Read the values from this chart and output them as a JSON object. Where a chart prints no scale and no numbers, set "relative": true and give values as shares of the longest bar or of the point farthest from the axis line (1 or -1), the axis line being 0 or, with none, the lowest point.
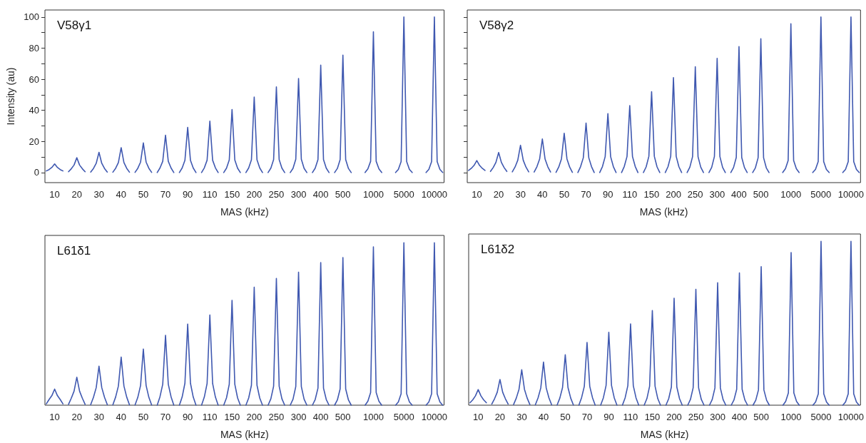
{
  "chart_data": [
    {
      "type": "line",
      "title": "V58γ1",
      "xlabel": "MAS (kHz)",
      "ylabel": "Intensity (au)",
      "color": "#3f58b0",
      "marker": "none",
      "line_style": "solid",
      "ylim": [
        -6.5,
        104.5
      ],
      "yticks": [
        0,
        {
          "value": 10,
          "label": null
        },
        20,
        {
          "value": 30,
          "label": null
        },
        40,
        {
          "value": 50,
          "label": null
        },
        60,
        {
          "value": 70,
          "label": null
        },
        80,
        {
          "value": 90,
          "label": null
        },
        100
      ],
      "categories": [
        null,
        null,
        null,
        "10",
        null,
        null,
        null,
        null,
        null,
        null,
        null,
        "20",
        null,
        null,
        null,
        null,
        null,
        null,
        null,
        "30",
        null,
        null,
        null,
        null,
        null,
        null,
        null,
        "40",
        null,
        null,
        null,
        null,
        null,
        null,
        null,
        "50",
        null,
        null,
        null,
        null,
        null,
        null,
        null,
        "70",
        null,
        null,
        null,
        null,
        null,
        null,
        null,
        "90",
        null,
        null,
        null,
        null,
        null,
        null,
        null,
        "110",
        null,
        null,
        null,
        null,
        null,
        null,
        null,
        "150",
        null,
        null,
        null,
        null,
        null,
        null,
        null,
        "200",
        null,
        null,
        null,
        null,
        null,
        null,
        null,
        "250",
        null,
        null,
        null,
        null,
        null,
        null,
        null,
        "300",
        null,
        null,
        null,
        null,
        null,
        null,
        null,
        "400",
        null,
        null,
        null,
        null,
        null,
        null,
        null,
        "500",
        null,
        null,
        null,
        null,
        null,
        null,
        null,
        null,
        null,
        null,
        "1000",
        null,
        null,
        null,
        null,
        null,
        null,
        null,
        null,
        null,
        null,
        "5000",
        null,
        null,
        null,
        null,
        null,
        null,
        null,
        null,
        null,
        null,
        "10000",
        null,
        null,
        null
      ],
      "values": [
        1,
        1.9,
        3.3,
        5.5,
        3.3,
        1.9,
        1,
        null,
        0.5,
        2.4,
        4.8,
        9.5,
        4.8,
        2.4,
        0.5,
        null,
        0.3,
        2.6,
        5.9,
        13,
        5.9,
        2.6,
        0.3,
        null,
        0.2,
        2.7,
        6.4,
        16,
        6.4,
        2.7,
        0.2,
        null,
        0.1,
        2.7,
        6.7,
        19,
        6.7,
        2.7,
        0.1,
        null,
        0,
        2.9,
        7.2,
        24,
        7.2,
        2.9,
        0,
        null,
        0,
        2.9,
        7.8,
        29,
        7.8,
        2.9,
        0,
        null,
        0,
        3,
        7.9,
        33,
        7.9,
        3,
        0,
        null,
        0,
        2.8,
        8.1,
        40.5,
        8.1,
        2.8,
        0,
        null,
        0,
        2.9,
        8.2,
        48.5,
        8.2,
        2.9,
        0,
        null,
        0,
        2.8,
        8.3,
        55,
        8.3,
        2.8,
        0,
        null,
        0,
        2.7,
        8.5,
        60.5,
        8.5,
        2.7,
        0,
        null,
        0,
        2.8,
        8.3,
        69,
        8.3,
        2.8,
        0,
        null,
        0,
        2.6,
        8.3,
        75.5,
        8.3,
        2.6,
        0,
        null,
        null,
        null,
        null,
        0,
        2.3,
        7.2,
        90.5,
        7.2,
        2.3,
        0,
        null,
        null,
        null,
        null,
        0,
        2,
        7,
        100,
        7,
        2,
        0,
        null,
        null,
        null,
        null,
        0,
        2,
        7,
        100,
        7,
        2,
        0
      ]
    },
    {
      "type": "line",
      "title": "V58γ2",
      "xlabel": "MAS (kHz)",
      "color": "#3f58b0",
      "marker": "none",
      "line_style": "solid",
      "tick_labels": "x",
      "ylim": [
        -6.5,
        104.5
      ],
      "yticks": [
        0,
        {
          "value": 10,
          "label": null
        },
        20,
        {
          "value": 30,
          "label": null
        },
        40,
        {
          "value": 50,
          "label": null
        },
        60,
        {
          "value": 70,
          "label": null
        },
        80,
        {
          "value": 90,
          "label": null
        },
        100
      ],
      "categories": [
        null,
        null,
        null,
        "10",
        null,
        null,
        null,
        null,
        null,
        null,
        null,
        "20",
        null,
        null,
        null,
        null,
        null,
        null,
        null,
        "30",
        null,
        null,
        null,
        null,
        null,
        null,
        null,
        "40",
        null,
        null,
        null,
        null,
        null,
        null,
        null,
        "50",
        null,
        null,
        null,
        null,
        null,
        null,
        null,
        "70",
        null,
        null,
        null,
        null,
        null,
        null,
        null,
        "90",
        null,
        null,
        null,
        null,
        null,
        null,
        null,
        "110",
        null,
        null,
        null,
        null,
        null,
        null,
        null,
        "150",
        null,
        null,
        null,
        null,
        null,
        null,
        null,
        "200",
        null,
        null,
        null,
        null,
        null,
        null,
        null,
        "250",
        null,
        null,
        null,
        null,
        null,
        null,
        null,
        "300",
        null,
        null,
        null,
        null,
        null,
        null,
        null,
        "400",
        null,
        null,
        null,
        null,
        null,
        null,
        null,
        "500",
        null,
        null,
        null,
        null,
        null,
        null,
        null,
        null,
        null,
        null,
        "1000",
        null,
        null,
        null,
        null,
        null,
        null,
        null,
        null,
        null,
        null,
        "5000",
        null,
        null,
        null,
        null,
        null,
        null,
        null,
        null,
        null,
        null,
        "10000",
        null,
        null,
        null
      ],
      "values": [
        1.3,
        2.7,
        4.6,
        7.7,
        4.6,
        2.7,
        1.3,
        null,
        0.7,
        3.2,
        6.5,
        12.9,
        6.5,
        3.2,
        0.7,
        null,
        0.4,
        3.5,
        7.9,
        17.5,
        7.9,
        3.5,
        0.4,
        null,
        0.3,
        3.7,
        8.6,
        21.6,
        8.6,
        3.7,
        0.3,
        null,
        0.1,
        3.5,
        8.8,
        25.2,
        8.8,
        3.5,
        0.1,
        null,
        0,
        3.8,
        9.5,
        31.8,
        9.5,
        3.8,
        0,
        null,
        0,
        3.8,
        10.2,
        37.9,
        10.2,
        3.8,
        0,
        null,
        0,
        3.9,
        10.3,
        43,
        10.3,
        3.9,
        0,
        null,
        0,
        3.6,
        10.4,
        52,
        10.4,
        3.6,
        0,
        null,
        0,
        3.7,
        10.4,
        61,
        10.4,
        3.7,
        0,
        null,
        0,
        3.4,
        10.2,
        68,
        10.2,
        3.4,
        0,
        null,
        0,
        3.3,
        10.3,
        73.4,
        10.3,
        3.3,
        0,
        null,
        0,
        3.2,
        9.7,
        81,
        9.7,
        3.2,
        0,
        null,
        0,
        3,
        9.5,
        86,
        9.5,
        3,
        0,
        null,
        null,
        null,
        null,
        0,
        2.4,
        7.7,
        95.7,
        7.7,
        2.4,
        0,
        null,
        null,
        null,
        null,
        0,
        2,
        7,
        100,
        7,
        2,
        0,
        null,
        null,
        null,
        null,
        0,
        2,
        7,
        100,
        7,
        2,
        0
      ]
    },
    {
      "type": "line",
      "title": "L61δ1",
      "xlabel": "MAS (kHz)",
      "color": "#3f58b0",
      "marker": "none",
      "line_style": "solid",
      "relative": true,
      "categories": [
        null,
        null,
        null,
        "10",
        null,
        null,
        null,
        null,
        null,
        null,
        null,
        "20",
        null,
        null,
        null,
        null,
        null,
        null,
        null,
        "30",
        null,
        null,
        null,
        null,
        null,
        null,
        null,
        "40",
        null,
        null,
        null,
        null,
        null,
        null,
        null,
        "50",
        null,
        null,
        null,
        null,
        null,
        null,
        null,
        "70",
        null,
        null,
        null,
        null,
        null,
        null,
        null,
        "90",
        null,
        null,
        null,
        null,
        null,
        null,
        null,
        "110",
        null,
        null,
        null,
        null,
        null,
        null,
        null,
        "150",
        null,
        null,
        null,
        null,
        null,
        null,
        null,
        "200",
        null,
        null,
        null,
        null,
        null,
        null,
        null,
        "250",
        null,
        null,
        null,
        null,
        null,
        null,
        null,
        "300",
        null,
        null,
        null,
        null,
        null,
        null,
        null,
        "400",
        null,
        null,
        null,
        null,
        null,
        null,
        null,
        "500",
        null,
        null,
        null,
        null,
        null,
        null,
        null,
        null,
        null,
        null,
        "1000",
        null,
        null,
        null,
        null,
        null,
        null,
        null,
        null,
        null,
        null,
        "5000",
        null,
        null,
        null,
        null,
        null,
        null,
        null,
        null,
        null,
        null,
        "10000",
        null,
        null,
        null
      ],
      "values": [
        0.008,
        0.035,
        0.059,
        0.099,
        0.059,
        0.035,
        0.008,
        null,
        0.005,
        0.043,
        0.086,
        0.172,
        0.086,
        0.043,
        0.005,
        null,
        0.003,
        0.048,
        0.108,
        0.24,
        0.108,
        0.048,
        0.003,
        null,
        0.002,
        0.05,
        0.118,
        0.296,
        0.118,
        0.05,
        0.002,
        null,
        0.001,
        0.048,
        0.121,
        0.346,
        0.121,
        0.048,
        0.001,
        null,
        0,
        0.052,
        0.129,
        0.43,
        0.129,
        0.052,
        0,
        null,
        0,
        0.05,
        0.135,
        0.499,
        0.135,
        0.05,
        0,
        null,
        0,
        0.05,
        0.133,
        0.555,
        0.133,
        0.05,
        0,
        null,
        0,
        0.045,
        0.129,
        0.645,
        0.129,
        0.045,
        0,
        null,
        0,
        0.044,
        0.123,
        0.726,
        0.123,
        0.044,
        0,
        null,
        0,
        0.039,
        0.117,
        0.78,
        0.117,
        0.039,
        0,
        null,
        0,
        0.037,
        0.115,
        0.819,
        0.115,
        0.037,
        0,
        null,
        0,
        0.035,
        0.105,
        0.878,
        0.105,
        0.035,
        0,
        null,
        0,
        0.032,
        0.1,
        0.909,
        0.1,
        0.032,
        0,
        null,
        null,
        null,
        null,
        0,
        0.024,
        0.078,
        0.974,
        0.078,
        0.024,
        0,
        null,
        null,
        null,
        null,
        0,
        0.02,
        0.07,
        1,
        0.07,
        0.02,
        0,
        null,
        null,
        null,
        null,
        0,
        0.02,
        0.07,
        1,
        0.07,
        0.02,
        0
      ]
    },
    {
      "type": "line",
      "title": "L61δ2",
      "xlabel": "MAS (kHz)",
      "color": "#3f58b0",
      "marker": "none",
      "line_style": "solid",
      "relative": true,
      "categories": [
        null,
        null,
        null,
        "10",
        null,
        null,
        null,
        null,
        null,
        null,
        null,
        "20",
        null,
        null,
        null,
        null,
        null,
        null,
        null,
        "30",
        null,
        null,
        null,
        null,
        null,
        null,
        null,
        "40",
        null,
        null,
        null,
        null,
        null,
        null,
        null,
        "50",
        null,
        null,
        null,
        null,
        null,
        null,
        null,
        "70",
        null,
        null,
        null,
        null,
        null,
        null,
        null,
        "90",
        null,
        null,
        null,
        null,
        null,
        null,
        null,
        "110",
        null,
        null,
        null,
        null,
        null,
        null,
        null,
        "150",
        null,
        null,
        null,
        null,
        null,
        null,
        null,
        "200",
        null,
        null,
        null,
        null,
        null,
        null,
        null,
        "250",
        null,
        null,
        null,
        null,
        null,
        null,
        null,
        "300",
        null,
        null,
        null,
        null,
        null,
        null,
        null,
        "400",
        null,
        null,
        null,
        null,
        null,
        null,
        null,
        "500",
        null,
        null,
        null,
        null,
        null,
        null,
        null,
        null,
        null,
        null,
        "1000",
        null,
        null,
        null,
        null,
        null,
        null,
        null,
        null,
        null,
        null,
        "5000",
        null,
        null,
        null,
        null,
        null,
        null,
        null,
        null,
        null,
        null,
        "10000",
        null,
        null,
        null
      ],
      "values": [
        0.015,
        0.033,
        0.057,
        0.095,
        0.057,
        0.033,
        0.015,
        null,
        0.007,
        0.039,
        0.079,
        0.157,
        0.079,
        0.039,
        0.007,
        null,
        0.004,
        0.043,
        0.097,
        0.216,
        0.097,
        0.043,
        0.004,
        null,
        0.002,
        0.045,
        0.105,
        0.263,
        0.105,
        0.045,
        0.002,
        null,
        0.001,
        0.043,
        0.108,
        0.308,
        0.108,
        0.043,
        0.001,
        null,
        0,
        0.046,
        0.115,
        0.383,
        0.115,
        0.046,
        0,
        null,
        0,
        0.045,
        0.12,
        0.445,
        0.12,
        0.045,
        0,
        null,
        0,
        0.045,
        0.119,
        0.496,
        0.119,
        0.045,
        0,
        null,
        0,
        0.04,
        0.116,
        0.578,
        0.116,
        0.04,
        0,
        null,
        0,
        0.039,
        0.111,
        0.653,
        0.111,
        0.039,
        0,
        null,
        0,
        0.035,
        0.106,
        0.707,
        0.106,
        0.035,
        0,
        null,
        0,
        0.034,
        0.105,
        0.748,
        0.105,
        0.034,
        0,
        null,
        0,
        0.032,
        0.097,
        0.807,
        0.097,
        0.032,
        0,
        null,
        0,
        0.03,
        0.093,
        0.846,
        0.093,
        0.03,
        0,
        null,
        null,
        null,
        null,
        0,
        0.023,
        0.075,
        0.932,
        0.075,
        0.023,
        0,
        null,
        null,
        null,
        null,
        0,
        0.02,
        0.07,
        1,
        0.07,
        0.02,
        0,
        null,
        null,
        null,
        null,
        0,
        0.02,
        0.07,
        1,
        0.07,
        0.02,
        0
      ]
    }
  ]
}
